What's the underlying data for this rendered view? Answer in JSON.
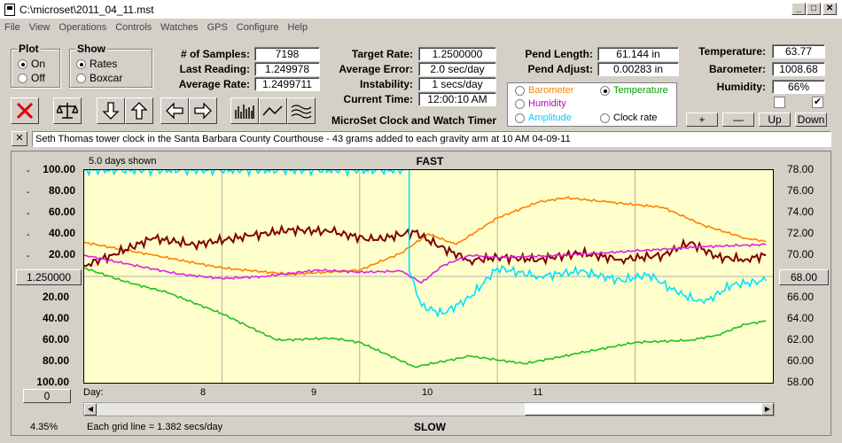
{
  "window": {
    "title": "C:\\microset\\2011_04_11.mst"
  },
  "menu": [
    "File",
    "View",
    "Operations",
    "Controls",
    "Watches",
    "GPS",
    "Configure",
    "Help"
  ],
  "plot_group": {
    "legend": "Plot",
    "on": "On",
    "off": "Off",
    "selected": "On"
  },
  "show_group": {
    "legend": "Show",
    "rates": "Rates",
    "boxcar": "Boxcar",
    "selected": "Rates"
  },
  "stats": {
    "samples_label": "# of Samples:",
    "samples": "7198",
    "last_label": "Last Reading:",
    "last": "1.249978",
    "avg_label": "Average Rate:",
    "avg": "1.2499711",
    "target_label": "Target Rate:",
    "target": "1.2500000",
    "avgerr_label": "Average Error:",
    "avgerr": "2.0 sec/day",
    "instab_label": "Instability:",
    "instab": "1 secs/day",
    "time_label": "Current Time:",
    "time": "12:00:10 AM",
    "pendlen_label": "Pend Length:",
    "pendlen": "61.144 in",
    "pendadj_label": "Pend Adjust:",
    "pendadj": "0.00283 in",
    "temp_label": "Temperature:",
    "temp": "63.77",
    "baro_label": "Barometer:",
    "baro": "1008.68",
    "hum_label": "Humidity:",
    "hum": "66%"
  },
  "app_caption": "MicroSet Clock and Watch Timer",
  "sensor_select": {
    "barometer": "Barometer",
    "temperature": "Temperature",
    "humidity": "Humidity",
    "amplitude": "Amplitude",
    "clockrate": "Clock rate",
    "selected": "Temperature",
    "colors": {
      "barometer": "#ff8000",
      "temperature": "#00a000",
      "humidity": "#c000c0",
      "amplitude": "#00e0ff",
      "clockrate": "#000000"
    }
  },
  "scale_buttons": {
    "plus": "+",
    "minus": "—",
    "up": "Up",
    "down": "Down"
  },
  "comment_close": "✕",
  "comment": "Seth Thomas tower clock in the Santa Barbara County Courthouse - 43 grams added to each gravity arm at 10 AM 04-09-11",
  "graph": {
    "days_shown": "5.0 days shown",
    "top_label": "FAST",
    "bottom_label": "SLOW",
    "center_value": "1.250000",
    "right_center": "68.00",
    "left_ticks_top": [
      "100.00",
      "80.00",
      "60.00",
      "40.00",
      "20.00"
    ],
    "left_ticks_bottom": [
      "20.00",
      "40.00",
      "60.00",
      "80.00",
      "100.00"
    ],
    "right_ticks": [
      "78.00",
      "76.00",
      "74.00",
      "72.00",
      "70.00",
      "68.00",
      "66.00",
      "64.00",
      "62.00",
      "60.00",
      "58.00"
    ],
    "day_label": "Day:",
    "days": [
      "8",
      "9",
      "10",
      "11"
    ],
    "offset": "0",
    "percent": "4.35%",
    "grid_note": "Each grid line = 1.382 secs/day"
  },
  "chart_data": {
    "type": "line",
    "x_label": "Day",
    "xlim": [
      7.0,
      12.0
    ],
    "left_axis": {
      "title": "",
      "range": [
        -100,
        100
      ],
      "center": "1.250000"
    },
    "right_axis": {
      "title": "",
      "range": [
        58,
        78
      ]
    },
    "series": [
      {
        "color": "#ff8000",
        "axis": "left",
        "x": [
          7.0,
          7.5,
          8.0,
          8.5,
          9.0,
          9.3,
          9.5,
          9.7,
          10.0,
          10.3,
          10.5,
          10.8,
          11.2,
          11.5,
          11.8,
          11.95
        ],
        "y": [
          32,
          20,
          8,
          2,
          6,
          22,
          40,
          30,
          55,
          70,
          74,
          70,
          65,
          48,
          36,
          33
        ]
      },
      {
        "color": "#800000",
        "axis": "left",
        "x": [
          7.0,
          7.2,
          7.5,
          7.8,
          8.2,
          8.5,
          8.8,
          9.1,
          9.4,
          9.55,
          9.8,
          10.0,
          10.3,
          10.6,
          10.9,
          11.2,
          11.4,
          11.6,
          11.8,
          11.95
        ],
        "y": [
          10,
          20,
          36,
          30,
          38,
          44,
          42,
          34,
          42,
          30,
          15,
          18,
          16,
          22,
          16,
          20,
          32,
          18,
          16,
          20
        ]
      },
      {
        "color": "#e020e0",
        "axis": "left",
        "x": [
          7.0,
          7.3,
          7.7,
          8.0,
          8.3,
          8.7,
          9.0,
          9.3,
          9.45,
          9.6,
          9.8,
          10.0,
          10.5,
          11.0,
          11.5,
          11.95
        ],
        "y": [
          20,
          12,
          2,
          -2,
          0,
          6,
          4,
          5,
          -6,
          10,
          20,
          18,
          20,
          24,
          28,
          30
        ]
      },
      {
        "color": "#00e0ff",
        "axis": "left",
        "x": [
          7.0,
          9.36,
          9.36,
          9.45,
          9.6,
          9.8,
          10.0,
          10.3,
          10.6,
          10.9,
          11.1,
          11.3,
          11.5,
          11.7,
          11.95
        ],
        "y": [
          100,
          100,
          5,
          -28,
          -35,
          -20,
          8,
          0,
          5,
          -4,
          2,
          -15,
          -25,
          -8,
          -4
        ]
      },
      {
        "color": "#20c020",
        "axis": "left",
        "x": [
          7.0,
          7.3,
          7.6,
          8.0,
          8.4,
          8.8,
          9.0,
          9.4,
          9.8,
          10.2,
          10.6,
          11.0,
          11.4,
          11.6,
          11.8,
          11.95
        ],
        "y": [
          8,
          -5,
          -15,
          -35,
          -60,
          -58,
          -62,
          -85,
          -75,
          -82,
          -72,
          -62,
          -60,
          -55,
          -45,
          -42
        ]
      }
    ]
  }
}
